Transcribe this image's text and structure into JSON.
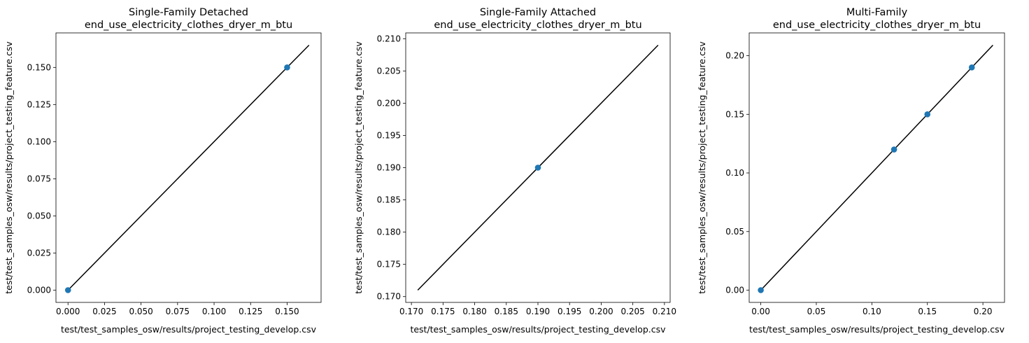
{
  "chart_data": [
    {
      "type": "scatter",
      "title": "Single-Family Detached",
      "subtitle": "end_use_electricity_clothes_dryer_m_btu",
      "xlabel": "test/test_samples_osw/results/project_testing_develop.csv",
      "ylabel": "test/test_samples_osw/results/project_testing_feature.csv",
      "xlim": [
        -0.00825,
        0.17325
      ],
      "ylim": [
        -0.00825,
        0.17325
      ],
      "xticks": [
        0.0,
        0.025,
        0.05,
        0.075,
        0.1,
        0.125,
        0.15
      ],
      "xtick_labels": [
        "0.000",
        "0.025",
        "0.050",
        "0.075",
        "0.100",
        "0.125",
        "0.150"
      ],
      "yticks": [
        0.0,
        0.025,
        0.05,
        0.075,
        0.1,
        0.125,
        0.15
      ],
      "ytick_labels": [
        "0.000",
        "0.025",
        "0.050",
        "0.075",
        "0.100",
        "0.125",
        "0.150"
      ],
      "points": [
        {
          "x": 0.0,
          "y": 0.0
        },
        {
          "x": 0.15,
          "y": 0.15
        }
      ],
      "reference_line": [
        [
          0.0,
          0.0
        ],
        [
          0.165,
          0.165
        ]
      ],
      "point_color": "#1f77b4",
      "line_color": "#000000"
    },
    {
      "type": "scatter",
      "title": "Single-Family Attached",
      "subtitle": "end_use_electricity_clothes_dryer_m_btu",
      "xlabel": "test/test_samples_osw/results/project_testing_develop.csv",
      "ylabel": "test/test_samples_osw/results/project_testing_feature.csv",
      "xlim": [
        0.1691,
        0.2109
      ],
      "ylim": [
        0.1691,
        0.2109
      ],
      "xticks": [
        0.17,
        0.175,
        0.18,
        0.185,
        0.19,
        0.195,
        0.2,
        0.205,
        0.21
      ],
      "xtick_labels": [
        "0.170",
        "0.175",
        "0.180",
        "0.185",
        "0.190",
        "0.195",
        "0.200",
        "0.205",
        "0.210"
      ],
      "yticks": [
        0.17,
        0.175,
        0.18,
        0.185,
        0.19,
        0.195,
        0.2,
        0.205,
        0.21
      ],
      "ytick_labels": [
        "0.170",
        "0.175",
        "0.180",
        "0.185",
        "0.190",
        "0.195",
        "0.200",
        "0.205",
        "0.210"
      ],
      "points": [
        {
          "x": 0.19,
          "y": 0.19
        }
      ],
      "reference_line": [
        [
          0.171,
          0.171
        ],
        [
          0.209,
          0.209
        ]
      ],
      "point_color": "#1f77b4",
      "line_color": "#000000"
    },
    {
      "type": "scatter",
      "title": "Multi-Family",
      "subtitle": "end_use_electricity_clothes_dryer_m_btu",
      "xlabel": "test/test_samples_osw/results/project_testing_develop.csv",
      "ylabel": "test/test_samples_osw/results/project_testing_feature.csv",
      "xlim": [
        -0.01045,
        0.21945
      ],
      "ylim": [
        -0.01045,
        0.21945
      ],
      "xticks": [
        0.0,
        0.05,
        0.1,
        0.15,
        0.2
      ],
      "xtick_labels": [
        "0.00",
        "0.05",
        "0.10",
        "0.15",
        "0.20"
      ],
      "yticks": [
        0.0,
        0.05,
        0.1,
        0.15,
        0.2
      ],
      "ytick_labels": [
        "0.00",
        "0.05",
        "0.10",
        "0.15",
        "0.20"
      ],
      "points": [
        {
          "x": 0.0,
          "y": 0.0
        },
        {
          "x": 0.12,
          "y": 0.12
        },
        {
          "x": 0.15,
          "y": 0.15
        },
        {
          "x": 0.19,
          "y": 0.19
        }
      ],
      "reference_line": [
        [
          0.0,
          0.0
        ],
        [
          0.209,
          0.209
        ]
      ],
      "point_color": "#1f77b4",
      "line_color": "#000000"
    }
  ]
}
